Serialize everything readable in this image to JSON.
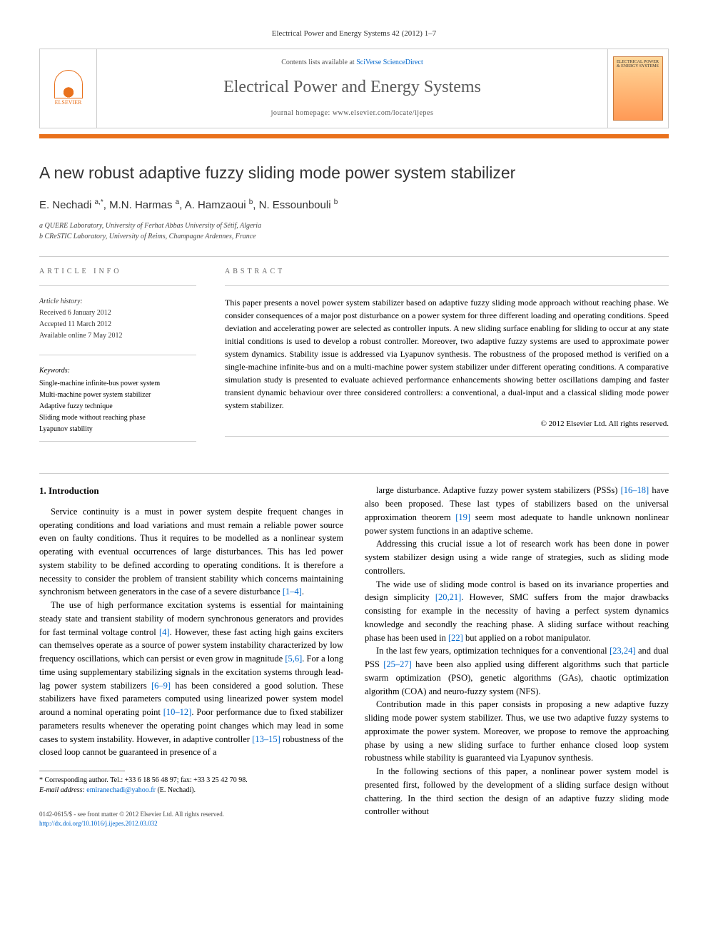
{
  "journal_ref": "Electrical Power and Energy Systems 42 (2012) 1–7",
  "header": {
    "contents_prefix": "Contents lists available at ",
    "contents_link": "SciVerse ScienceDirect",
    "journal_name": "Electrical Power and Energy Systems",
    "homepage_prefix": "journal homepage: ",
    "homepage_url": "www.elsevier.com/locate/ijepes",
    "publisher": "ELSEVIER",
    "cover_text": "ELECTRICAL POWER & ENERGY SYSTEMS"
  },
  "title": "A new robust adaptive fuzzy sliding mode power system stabilizer",
  "authors_html": "E. Nechadi <sup>a,*</sup>, M.N. Harmas <sup>a</sup>, A. Hamzaoui <sup>b</sup>, N. Essounbouli <sup>b</sup>",
  "affiliations": {
    "a": "a QUERE Laboratory, University of Ferhat Abbas University of Sétif, Algeria",
    "b": "b CReSTIC Laboratory, University of Reims, Champagne Ardennes, France"
  },
  "info_label": "ARTICLE INFO",
  "abstract_label": "ABSTRACT",
  "history": {
    "label": "Article history:",
    "received": "Received 6 January 2012",
    "accepted": "Accepted 11 March 2012",
    "online": "Available online 7 May 2012"
  },
  "keywords": {
    "label": "Keywords:",
    "items": [
      "Single-machine infinite-bus power system",
      "Multi-machine power system stabilizer",
      "Adaptive fuzzy technique",
      "Sliding mode without reaching phase",
      "Lyapunov stability"
    ]
  },
  "abstract": "This paper presents a novel power system stabilizer based on adaptive fuzzy sliding mode approach without reaching phase. We consider consequences of a major post disturbance on a power system for three different loading and operating conditions. Speed deviation and accelerating power are selected as controller inputs. A new sliding surface enabling for sliding to occur at any state initial conditions is used to develop a robust controller. Moreover, two adaptive fuzzy systems are used to approximate power system dynamics. Stability issue is addressed via Lyapunov synthesis. The robustness of the proposed method is verified on a single-machine infinite-bus and on a multi-machine power system stabilizer under different operating conditions. A comparative simulation study is presented to evaluate achieved performance enhancements showing better oscillations damping and faster transient dynamic behaviour over three considered controllers: a conventional, a dual-input and a classical sliding mode power system stabilizer.",
  "copyright": "© 2012 Elsevier Ltd. All rights reserved.",
  "intro_heading": "1. Introduction",
  "left_paragraphs": [
    "Service continuity is a must in power system despite frequent changes in operating conditions and load variations and must remain a reliable power source even on faulty conditions. Thus it requires to be modelled as a nonlinear system operating with eventual occurrences of large disturbances. This has led power system stability to be defined according to operating conditions. It is therefore a necessity to consider the problem of transient stability which concerns maintaining synchronism between generators in the case of a severe disturbance [1–4].",
    "The use of high performance excitation systems is essential for maintaining steady state and transient stability of modern synchronous generators and provides for fast terminal voltage control [4]. However, these fast acting high gains exciters can themselves operate as a source of power system instability characterized by low frequency oscillations, which can persist or even grow in magnitude [5,6]. For a long time using supplementary stabilizing signals in the excitation systems through lead-lag power system stabilizers [6–9] has been considered a good solution. These stabilizers have fixed parameters computed using linearized power system model around a nominal operating point [10–12]. Poor performance due to fixed stabilizer parameters results whenever the operating point changes which may lead in some cases to system instability. However, in adaptive controller [13–15] robustness of the closed loop cannot be guaranteed in presence of a"
  ],
  "right_paragraphs": [
    "large disturbance. Adaptive fuzzy power system stabilizers (PSSs) [16–18] have also been proposed. These last types of stabilizers based on the universal approximation theorem [19] seem most adequate to handle unknown nonlinear power system functions in an adaptive scheme.",
    "Addressing this crucial issue a lot of research work has been done in power system stabilizer design using a wide range of strategies, such as sliding mode controllers.",
    "The wide use of sliding mode control is based on its invariance properties and design simplicity [20,21]. However, SMC suffers from the major drawbacks consisting for example in the necessity of having a perfect system dynamics knowledge and secondly the reaching phase. A sliding surface without reaching phase has been used in [22] but applied on a robot manipulator.",
    "In the last few years, optimization techniques for a conventional [23,24] and dual PSS [25–27] have been also applied using different algorithms such that particle swarm optimization (PSO), genetic algorithms (GAs), chaotic optimization algorithm (COA) and neuro-fuzzy system (NFS).",
    "Contribution made in this paper consists in proposing a new adaptive fuzzy sliding mode power system stabilizer. Thus, we use two adaptive fuzzy systems to approximate the power system. Moreover, we propose to remove the approaching phase by using a new sliding surface to further enhance closed loop system robustness while stability is guaranteed via Lyapunov synthesis.",
    "In the following sections of this paper, a nonlinear power system model is presented first, followed by the development of a sliding surface design without chattering. In the third section the design of an adaptive fuzzy sliding mode controller without"
  ],
  "footnote": {
    "corr": "* Corresponding author. Tel.: +33 6 18 56 48 97; fax: +33 3 25 42 70 98.",
    "email_label": "E-mail address: ",
    "email": "emiranechadi@yahoo.fr",
    "email_suffix": " (E. Nechadi)."
  },
  "footer": {
    "line1": "0142-0615/$ - see front matter © 2012 Elsevier Ltd. All rights reserved.",
    "doi_url": "http://dx.doi.org/10.1016/j.ijepes.2012.03.032"
  },
  "colors": {
    "orange": "#e9711c",
    "link": "#0066cc",
    "text": "#000000",
    "border": "#cccccc"
  }
}
